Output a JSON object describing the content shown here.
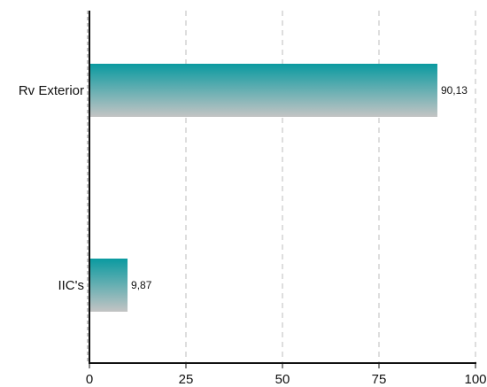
{
  "chart_data": {
    "type": "bar",
    "orientation": "horizontal",
    "title": "",
    "xlabel": "",
    "ylabel": "",
    "categories": [
      "Rv  Exterior",
      "IIC's"
    ],
    "values": [
      90.13,
      9.87
    ],
    "value_labels": [
      "90,13",
      "9,87"
    ],
    "xlim": [
      0,
      100
    ],
    "x_ticks": [
      0,
      25,
      50,
      75,
      100
    ],
    "grid": "vertical dashed",
    "legend": "none",
    "colors": {
      "bar_top": "#0a9aa0",
      "bar_bottom": "#c4c4c4",
      "grid": "#c8c8c8",
      "axis": "#111111"
    }
  }
}
